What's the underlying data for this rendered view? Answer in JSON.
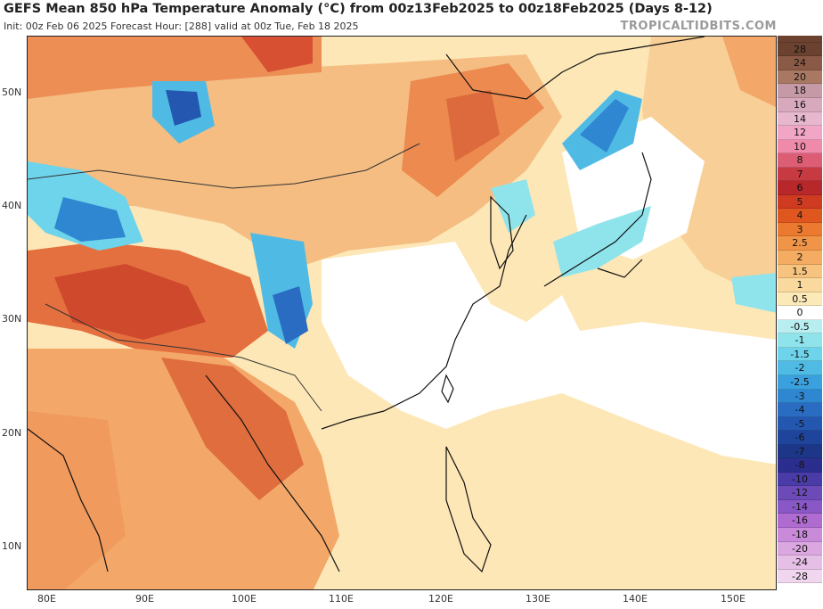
{
  "header": {
    "title": "GEFS Mean 850 hPa Temperature Anomaly (°C) from 00z13Feb2025 to 00z18Feb2025 (Days 8-12)",
    "subtitle": "Init: 00z Feb 06 2025   Forecast Hour: [288]   valid at 00z Tue, Feb 18 2025",
    "brand": "TROPICALTIDBITS.COM"
  },
  "map": {
    "lat_labels": [
      "50N",
      "40N",
      "30N",
      "20N",
      "10N"
    ],
    "lon_labels": [
      "80E",
      "90E",
      "100E",
      "110E",
      "120E",
      "130E",
      "140E",
      "150E"
    ]
  },
  "colorbar": {
    "levels": [
      "28",
      "24",
      "20",
      "18",
      "16",
      "14",
      "12",
      "10",
      "8",
      "7",
      "6",
      "5",
      "4",
      "3",
      "2.5",
      "2",
      "1.5",
      "1",
      "0.5",
      "0",
      "-0.5",
      "-1",
      "-1.5",
      "-2",
      "-2.5",
      "-3",
      "-4",
      "-5",
      "-6",
      "-7",
      "-8",
      "-10",
      "-12",
      "-14",
      "-16",
      "-18",
      "-20",
      "-24",
      "-28"
    ],
    "colors": [
      "#6b4130",
      "#8a5a46",
      "#a87863",
      "#c699a6",
      "#d8a9bd",
      "#e6b7cd",
      "#f2a6c6",
      "#f08aaa",
      "#dd5e74",
      "#c83a42",
      "#b8272a",
      "#cf3b21",
      "#e0561f",
      "#eb7930",
      "#f09547",
      "#f4ac62",
      "#f7c47f",
      "#fad99e",
      "#fbe9b8",
      "#ffffff",
      "#b8eef0",
      "#8fe4ec",
      "#6ed4eb",
      "#4fbbe5",
      "#3aa1de",
      "#2f86d1",
      "#2a6cc2",
      "#2457b0",
      "#1f449c",
      "#1d3687",
      "#2c2e8f",
      "#4a3ca8",
      "#6c4ab8",
      "#8a57c6",
      "#b06bd1",
      "#c88ad9",
      "#dba7e0",
      "#e6bfe6",
      "#f0d6ef"
    ]
  },
  "colors": {
    "land_warm": "#f5bd82",
    "ocean_mild": "#fde7b6",
    "hot_core": "#d8502a",
    "cold_core": "#2f7fd1",
    "neutral": "#ffffff",
    "coastline": "#111111",
    "border": "#333333"
  }
}
